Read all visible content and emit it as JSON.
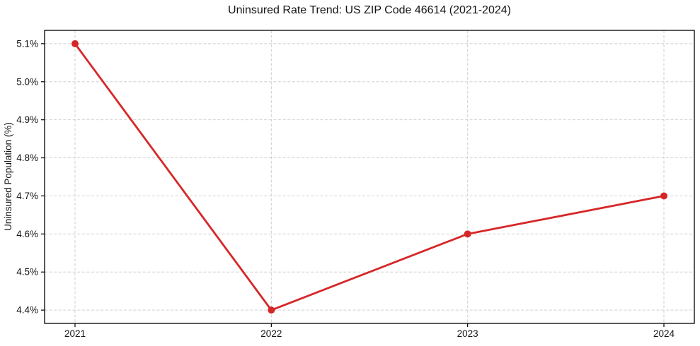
{
  "page": {
    "background_color": "#ffffff"
  },
  "chart_data": {
    "type": "line",
    "title": "Uninsured Rate Trend: US ZIP Code 46614 (2021-2024)",
    "xlabel": "",
    "ylabel": "Uninsured Population (%)",
    "x": [
      2021,
      2022,
      2023,
      2024
    ],
    "series": [
      {
        "name": "uninsured-rate",
        "values": [
          5.1,
          4.4,
          4.6,
          4.7
        ]
      }
    ],
    "unit": "%",
    "xticks": [
      {
        "v": 2021,
        "label": "2021"
      },
      {
        "v": 2022,
        "label": "2022"
      },
      {
        "v": 2023,
        "label": "2023"
      },
      {
        "v": 2024,
        "label": "2024"
      }
    ],
    "yticks": [
      {
        "v": 4.4,
        "label": "4.4%"
      },
      {
        "v": 4.5,
        "label": "4.5%"
      },
      {
        "v": 4.6,
        "label": "4.6%"
      },
      {
        "v": 4.7,
        "label": "4.7%"
      },
      {
        "v": 4.8,
        "label": "4.8%"
      },
      {
        "v": 4.9,
        "label": "4.9%"
      },
      {
        "v": 5.0,
        "label": "5.0%"
      },
      {
        "v": 5.1,
        "label": "5.1%"
      }
    ],
    "xlim": [
      2020.845,
      2024.155
    ],
    "ylim": [
      4.365,
      5.135
    ],
    "grid": {
      "visible": true,
      "style": "dashed",
      "color": "#cfcfcf"
    },
    "line_color": "#d62728",
    "line_width": 2.8,
    "marker": {
      "shape": "circle",
      "size": 5,
      "color": "#d62728"
    },
    "spine_color": "#000000",
    "tick_color": "#000000",
    "text_color": "#151515",
    "legend": "none"
  }
}
